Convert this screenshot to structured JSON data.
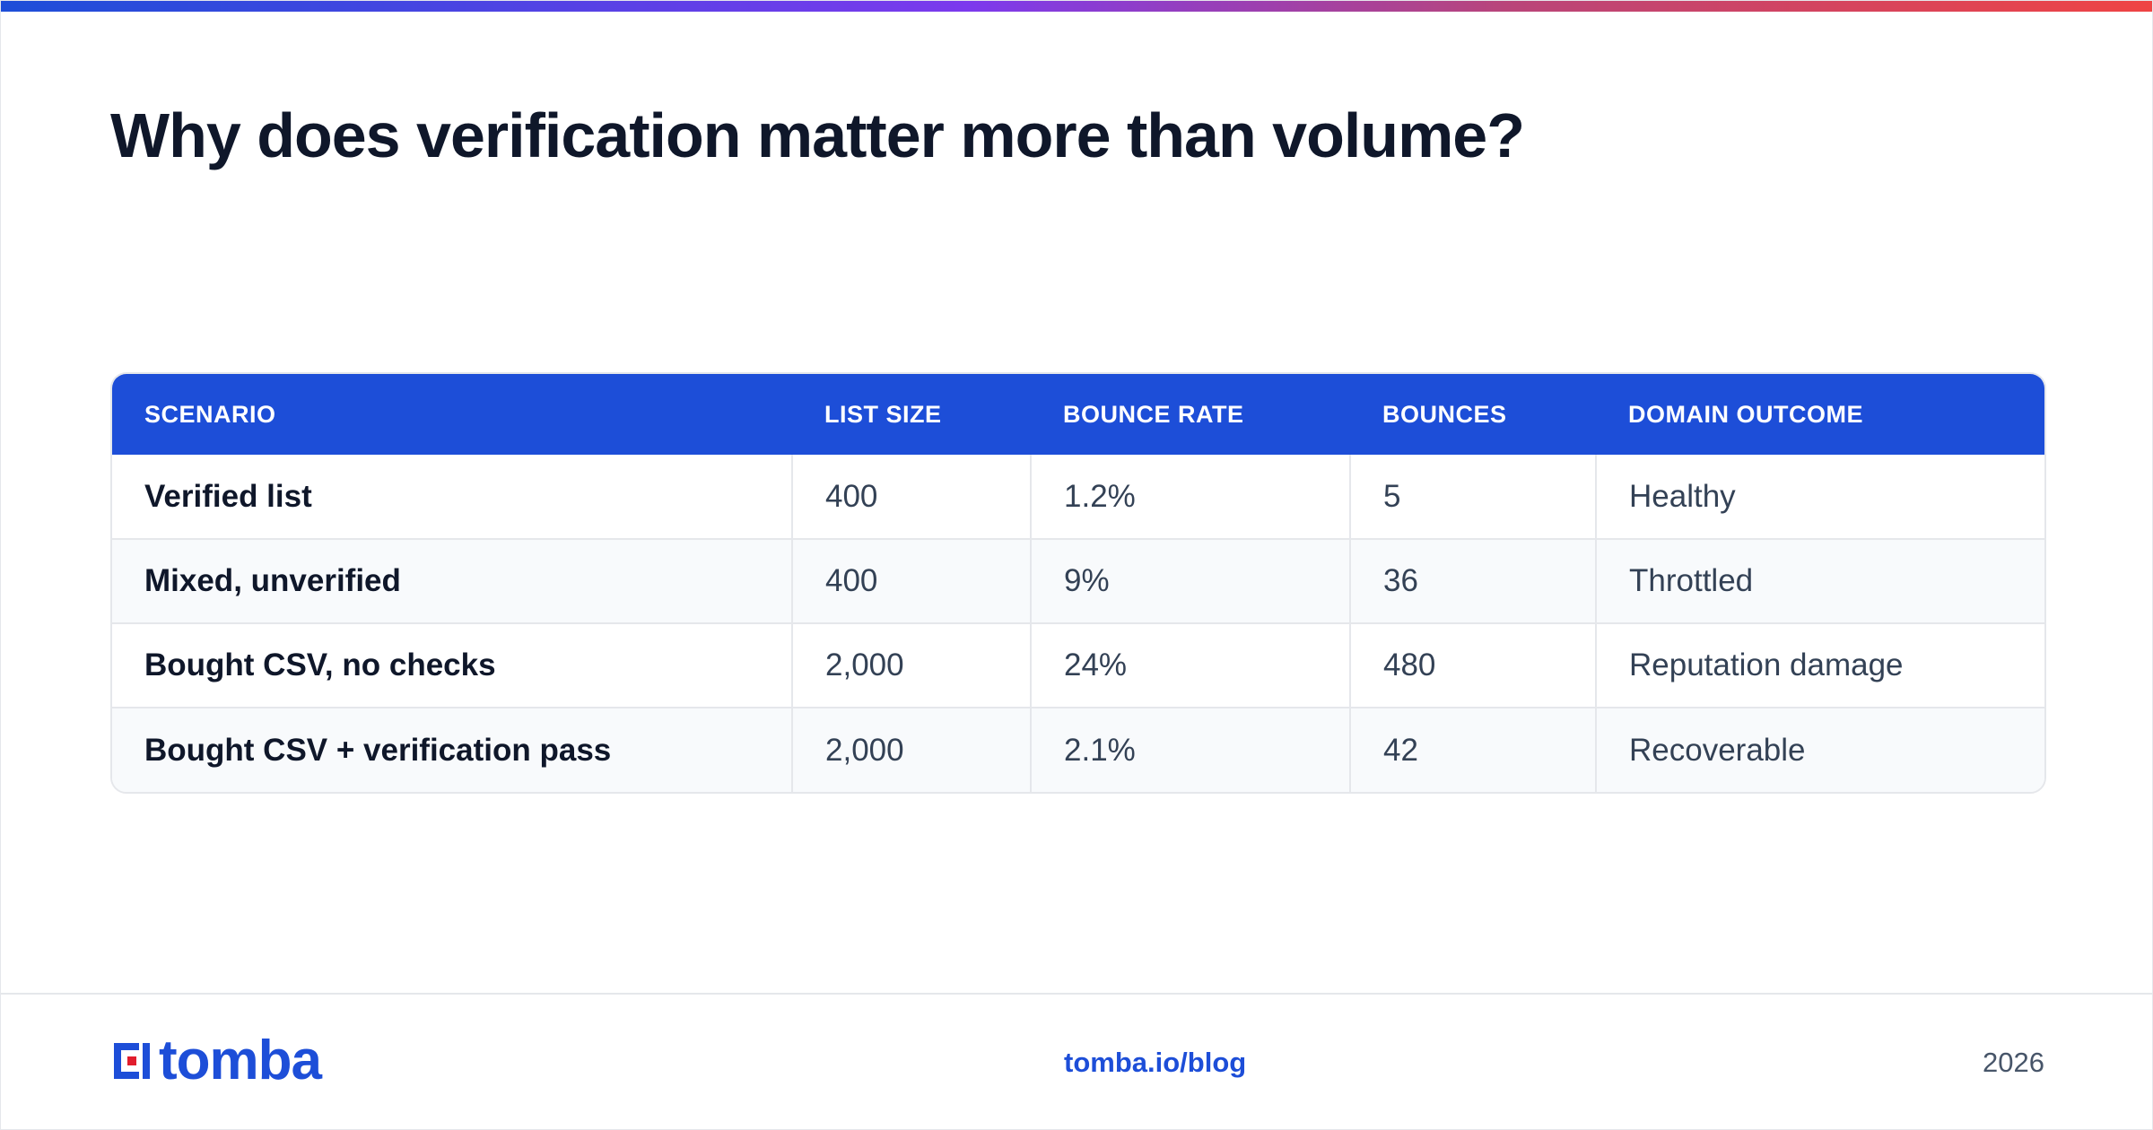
{
  "title": "Why does verification matter more than volume?",
  "colors": {
    "accent": "#1d4ed8",
    "logo_red": "#e11d2d",
    "heading": "#0f172a",
    "row_alt": "#f8fafc"
  },
  "table": {
    "headers": [
      "SCENARIO",
      "LIST SIZE",
      "BOUNCE RATE",
      "BOUNCES",
      "DOMAIN OUTCOME"
    ],
    "rows": [
      [
        "Verified list",
        "400",
        "1.2%",
        "5",
        "Healthy"
      ],
      [
        "Mixed, unverified",
        "400",
        "9%",
        "36",
        "Throttled"
      ],
      [
        "Bought CSV, no checks",
        "2,000",
        "24%",
        "480",
        "Reputation damage"
      ],
      [
        "Bought CSV + verification pass",
        "2,000",
        "2.1%",
        "42",
        "Recoverable"
      ]
    ]
  },
  "footer": {
    "logo_text": "tomba",
    "logo_icon": "tomba-logo-icon",
    "link": "tomba.io/blog",
    "year": "2026"
  }
}
